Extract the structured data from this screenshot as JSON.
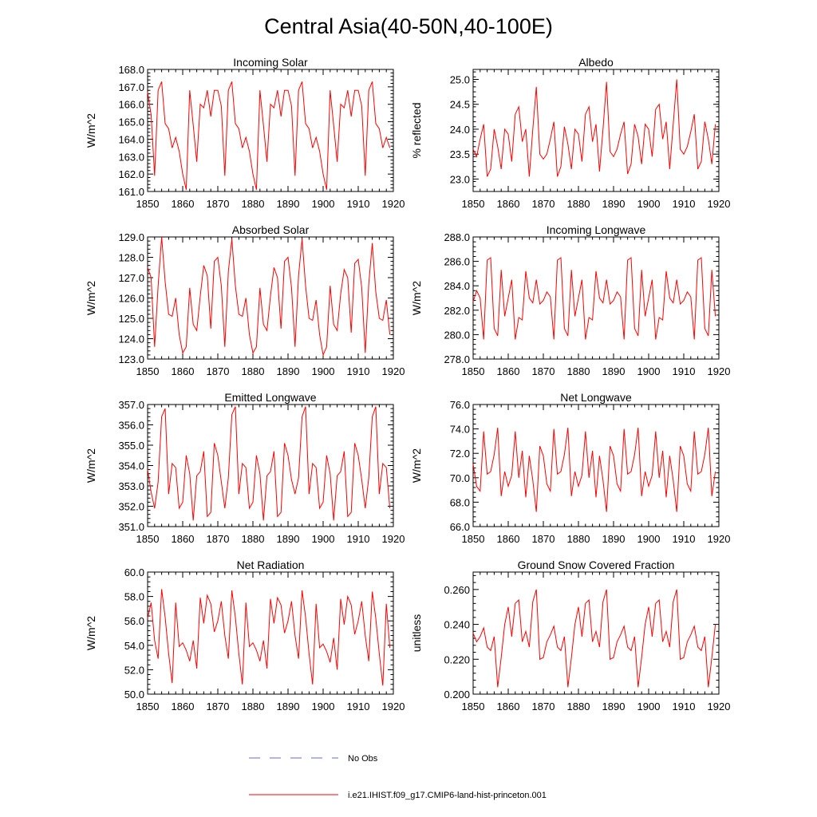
{
  "figure": {
    "title": "Central Asia(40-50N,40-100E)",
    "line_color": "#ff0000",
    "obs_color": "#6a6adb"
  },
  "legend": {
    "placement": "bottom-center",
    "obs_label": "No Obs",
    "model_label": "i.e21.IHIST.f09_g17.CMIP6-land-hist-princeton.001"
  },
  "chart_data": [
    {
      "type": "line",
      "title": "Incoming Solar",
      "ylabel": "W/m^2",
      "xlim": [
        1850,
        1920
      ],
      "ylim": [
        161.0,
        168.0
      ],
      "yticks": [
        "161.0",
        "162.0",
        "163.0",
        "164.0",
        "165.0",
        "166.0",
        "167.0",
        "168.0"
      ],
      "xticks": [
        "1850",
        "1860",
        "1870",
        "1880",
        "1890",
        "1900",
        "1910",
        "1920"
      ],
      "x_start": 1850,
      "values": [
        166.7,
        165.4,
        161.9,
        166.8,
        167.3,
        164.9,
        164.6,
        163.5,
        164.1,
        163.3,
        162.0,
        161.1,
        166.8,
        164.8,
        162.7,
        166.0,
        165.8,
        166.8,
        165.3,
        166.8,
        166.8,
        165.9,
        161.9,
        166.8,
        167.3,
        164.9,
        164.6,
        163.5,
        164.1,
        163.3,
        162.0,
        161.1,
        166.8,
        164.8,
        162.7,
        166.0,
        165.8,
        166.8,
        165.3,
        166.8,
        166.8,
        165.9,
        161.9,
        166.8,
        167.3,
        164.9,
        164.6,
        163.5,
        164.1,
        163.3,
        162.0,
        161.1,
        166.8,
        164.8,
        162.7,
        166.0,
        165.8,
        166.8,
        165.3,
        166.8,
        166.8,
        165.9,
        161.9,
        166.8,
        167.3,
        164.9,
        164.6,
        163.5,
        164.1,
        163.5
      ]
    },
    {
      "type": "line",
      "title": "Albedo",
      "ylabel": "% reflected",
      "xlim": [
        1850,
        1920
      ],
      "ylim": [
        22.75,
        25.2
      ],
      "yticks": [
        "23.0",
        "23.5",
        "24.0",
        "24.5",
        "25.0"
      ],
      "xticks": [
        "1850",
        "1860",
        "1870",
        "1880",
        "1890",
        "1900",
        "1910",
        "1920"
      ],
      "x_start": 1850,
      "values": [
        23.6,
        23.45,
        23.8,
        24.1,
        23.05,
        23.2,
        24.0,
        23.65,
        23.2,
        24.0,
        23.9,
        23.35,
        24.3,
        24.45,
        23.75,
        24.0,
        23.05,
        24.0,
        24.85,
        23.5,
        23.4,
        23.5,
        23.8,
        24.15,
        23.05,
        23.25,
        24.05,
        23.7,
        23.2,
        24.0,
        23.9,
        23.35,
        24.3,
        24.45,
        23.75,
        24.1,
        23.15,
        24.0,
        24.95,
        23.55,
        23.45,
        23.6,
        23.9,
        24.15,
        23.1,
        23.3,
        24.1,
        23.85,
        23.3,
        24.1,
        24.0,
        23.45,
        24.4,
        24.5,
        23.8,
        24.15,
        23.2,
        24.1,
        25.0,
        23.6,
        23.5,
        23.65,
        23.95,
        24.3,
        23.2,
        23.35,
        24.15,
        23.8,
        23.3,
        24.1
      ]
    },
    {
      "type": "line",
      "title": "Absorbed Solar",
      "ylabel": "W/m^2",
      "xlim": [
        1850,
        1920
      ],
      "ylim": [
        123.0,
        129.0
      ],
      "yticks": [
        "123.0",
        "124.0",
        "125.0",
        "126.0",
        "127.0",
        "128.0",
        "129.0"
      ],
      "xticks": [
        "1850",
        "1860",
        "1870",
        "1880",
        "1890",
        "1900",
        "1910",
        "1920"
      ],
      "x_start": 1850,
      "values": [
        127.5,
        127.0,
        123.6,
        126.6,
        129.0,
        126.8,
        125.2,
        125.1,
        126.0,
        124.2,
        123.3,
        123.6,
        126.5,
        124.7,
        124.4,
        126.1,
        127.6,
        127.1,
        124.5,
        127.8,
        128.0,
        126.6,
        123.6,
        127.3,
        128.9,
        126.6,
        125.2,
        125.1,
        126.0,
        124.2,
        123.3,
        123.6,
        126.5,
        124.7,
        124.4,
        126.1,
        127.5,
        127.0,
        124.5,
        127.8,
        128.0,
        126.5,
        123.6,
        127.1,
        128.9,
        126.6,
        125.0,
        124.9,
        125.9,
        124.2,
        123.2,
        123.6,
        126.6,
        124.7,
        124.4,
        126.2,
        127.4,
        127.0,
        124.3,
        127.7,
        127.9,
        126.5,
        123.3,
        126.7,
        128.7,
        126.3,
        125.0,
        124.9,
        125.9,
        124.2
      ]
    },
    {
      "type": "line",
      "title": "Incoming Longwave",
      "ylabel": "W/m^2",
      "xlim": [
        1850,
        1920
      ],
      "ylim": [
        278.0,
        288.0
      ],
      "yticks": [
        "278.0",
        "280.0",
        "282.0",
        "284.0",
        "286.0",
        "288.0"
      ],
      "xticks": [
        "1850",
        "1860",
        "1870",
        "1880",
        "1890",
        "1900",
        "1910",
        "1920"
      ],
      "x_start": 1850,
      "values": [
        282.7,
        283.6,
        283.0,
        279.6,
        286.1,
        286.3,
        280.5,
        279.9,
        285.3,
        281.5,
        283.0,
        284.5,
        279.6,
        281.4,
        281.2,
        285.2,
        283.0,
        282.6,
        284.5,
        282.5,
        282.8,
        283.5,
        283.1,
        279.6,
        286.1,
        286.3,
        280.5,
        279.9,
        285.3,
        281.5,
        283.0,
        284.5,
        279.6,
        281.4,
        281.2,
        285.2,
        283.0,
        282.6,
        284.5,
        282.5,
        282.8,
        283.5,
        283.1,
        279.6,
        286.1,
        286.3,
        280.5,
        279.9,
        285.3,
        281.5,
        283.0,
        284.5,
        279.6,
        281.4,
        281.2,
        285.2,
        283.0,
        282.6,
        284.5,
        282.5,
        282.8,
        283.5,
        283.1,
        279.6,
        286.1,
        286.3,
        280.5,
        279.9,
        285.3,
        281.5
      ]
    },
    {
      "type": "line",
      "title": "Emitted Longwave",
      "ylabel": "W/m^2",
      "xlim": [
        1850,
        1920
      ],
      "ylim": [
        351.0,
        357.0
      ],
      "yticks": [
        "351.0",
        "352.0",
        "353.0",
        "354.0",
        "355.0",
        "356.0",
        "357.0"
      ],
      "xticks": [
        "1850",
        "1860",
        "1870",
        "1880",
        "1890",
        "1900",
        "1910",
        "1920"
      ],
      "x_start": 1850,
      "values": [
        353.8,
        352.7,
        351.9,
        353.2,
        356.4,
        356.8,
        352.6,
        354.1,
        353.9,
        351.9,
        352.2,
        354.5,
        353.6,
        351.3,
        353.5,
        353.7,
        354.7,
        351.5,
        351.7,
        355.1,
        354.5,
        353.2,
        351.9,
        353.4,
        356.5,
        356.9,
        352.6,
        354.1,
        353.9,
        351.9,
        352.2,
        354.5,
        353.6,
        351.3,
        353.5,
        353.7,
        354.7,
        351.5,
        351.7,
        355.1,
        354.5,
        353.3,
        352.6,
        353.4,
        356.4,
        356.9,
        352.6,
        354.1,
        353.9,
        351.9,
        352.2,
        354.5,
        353.6,
        351.3,
        353.5,
        353.7,
        354.7,
        351.5,
        351.7,
        355.1,
        354.5,
        353.3,
        351.9,
        353.4,
        356.4,
        356.9,
        352.6,
        354.1,
        353.9,
        351.9
      ]
    },
    {
      "type": "line",
      "title": "Net Longwave",
      "ylabel": "W/m^2",
      "xlim": [
        1850,
        1920
      ],
      "ylim": [
        66.0,
        76.0
      ],
      "yticks": [
        "66.0",
        "68.0",
        "70.0",
        "72.0",
        "74.0",
        "76.0"
      ],
      "xticks": [
        "1850",
        "1860",
        "1870",
        "1880",
        "1890",
        "1900",
        "1910",
        "1920"
      ],
      "x_start": 1850,
      "values": [
        71.1,
        69.3,
        68.9,
        73.8,
        70.3,
        70.5,
        71.9,
        74.1,
        68.5,
        70.5,
        69.3,
        70.2,
        73.8,
        70.0,
        72.2,
        68.4,
        71.8,
        69.8,
        67.2,
        72.6,
        71.8,
        69.5,
        68.9,
        74.0,
        70.3,
        70.5,
        71.9,
        74.1,
        68.5,
        70.5,
        69.3,
        70.2,
        73.8,
        70.0,
        72.2,
        68.4,
        71.8,
        69.8,
        67.2,
        72.6,
        71.8,
        69.5,
        68.9,
        74.0,
        70.3,
        70.5,
        71.9,
        74.1,
        68.5,
        70.5,
        69.3,
        70.2,
        73.8,
        70.0,
        72.2,
        68.4,
        71.8,
        69.8,
        67.2,
        72.6,
        71.8,
        69.5,
        68.9,
        73.8,
        70.3,
        70.5,
        71.9,
        74.1,
        68.5,
        70.5
      ]
    },
    {
      "type": "line",
      "title": "Net Radiation",
      "ylabel": "W/m^2",
      "xlim": [
        1850,
        1920
      ],
      "ylim": [
        50.0,
        60.0
      ],
      "yticks": [
        "50.0",
        "52.0",
        "54.0",
        "56.0",
        "58.0",
        "60.0"
      ],
      "xticks": [
        "1850",
        "1860",
        "1870",
        "1880",
        "1890",
        "1900",
        "1910",
        "1920"
      ],
      "x_start": 1850,
      "values": [
        56.2,
        57.5,
        54.4,
        52.9,
        58.6,
        56.3,
        53.3,
        50.9,
        57.5,
        53.9,
        54.2,
        53.6,
        52.7,
        54.4,
        52.1,
        57.9,
        55.8,
        58.1,
        57.4,
        55.1,
        56.0,
        57.6,
        54.8,
        52.9,
        58.5,
        56.3,
        53.3,
        50.8,
        57.5,
        53.9,
        54.2,
        53.6,
        52.7,
        54.4,
        52.1,
        57.8,
        55.8,
        57.9,
        57.3,
        55.0,
        56.0,
        57.6,
        54.8,
        52.9,
        58.5,
        56.3,
        53.3,
        50.8,
        57.4,
        53.8,
        54.1,
        53.5,
        52.6,
        54.6,
        52.0,
        57.8,
        55.7,
        58.0,
        57.3,
        54.9,
        56.0,
        57.6,
        54.8,
        52.7,
        58.4,
        56.2,
        53.3,
        50.7,
        57.4,
        53.8
      ]
    },
    {
      "type": "line",
      "title": "Ground Snow Covered Fraction",
      "ylabel": "unitless",
      "xlim": [
        1850,
        1920
      ],
      "ylim": [
        0.2,
        0.27
      ],
      "yticks": [
        "0.200",
        "0.220",
        "0.240",
        "0.260"
      ],
      "xticks": [
        "1850",
        "1860",
        "1870",
        "1880",
        "1890",
        "1900",
        "1910",
        "1920"
      ],
      "x_start": 1850,
      "values": [
        0.235,
        0.23,
        0.233,
        0.238,
        0.227,
        0.225,
        0.233,
        0.204,
        0.221,
        0.24,
        0.25,
        0.233,
        0.252,
        0.254,
        0.23,
        0.236,
        0.227,
        0.253,
        0.26,
        0.22,
        0.221,
        0.23,
        0.234,
        0.239,
        0.227,
        0.225,
        0.233,
        0.204,
        0.221,
        0.24,
        0.25,
        0.233,
        0.252,
        0.254,
        0.23,
        0.236,
        0.227,
        0.253,
        0.26,
        0.22,
        0.221,
        0.23,
        0.234,
        0.239,
        0.227,
        0.225,
        0.233,
        0.204,
        0.221,
        0.24,
        0.25,
        0.233,
        0.252,
        0.254,
        0.23,
        0.236,
        0.227,
        0.253,
        0.26,
        0.22,
        0.221,
        0.23,
        0.234,
        0.239,
        0.227,
        0.225,
        0.233,
        0.204,
        0.221,
        0.24
      ]
    }
  ]
}
